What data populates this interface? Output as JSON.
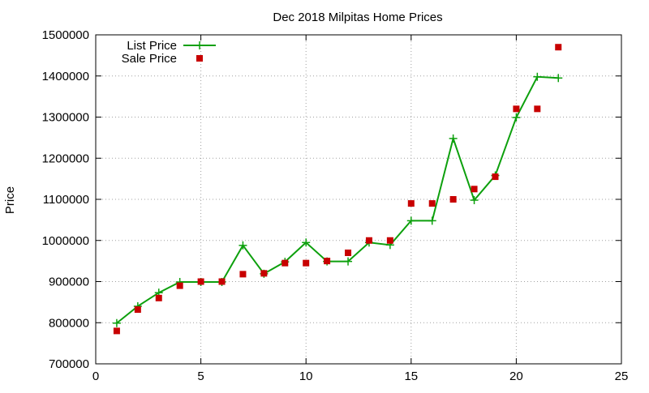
{
  "chart_data": {
    "type": "line",
    "title": "Dec 2018 Milpitas Home Prices",
    "xlabel": "",
    "ylabel": "Price",
    "xlim": [
      0,
      25
    ],
    "ylim": [
      700000,
      1500000
    ],
    "x_ticks": [
      0,
      5,
      10,
      15,
      20,
      25
    ],
    "y_ticks": [
      700000,
      800000,
      900000,
      1000000,
      1100000,
      1200000,
      1300000,
      1400000,
      1500000
    ],
    "grid": true,
    "legend_position": "top-left",
    "series": [
      {
        "name": "List Price",
        "style": "line-with-plus-markers",
        "color": "#0da00d",
        "x": [
          1,
          2,
          3,
          4,
          5,
          6,
          7,
          8,
          9,
          10,
          11,
          12,
          13,
          14,
          15,
          16,
          17,
          18,
          19,
          20,
          21,
          22
        ],
        "y": [
          799000,
          840000,
          873000,
          899000,
          899000,
          899000,
          988000,
          919000,
          948000,
          995000,
          949000,
          949000,
          995000,
          989000,
          1048000,
          1048000,
          1248000,
          1098000,
          1158000,
          1299000,
          1398000,
          1395000
        ]
      },
      {
        "name": "Sale Price",
        "style": "square-markers",
        "color": "#c80000",
        "x": [
          1,
          2,
          3,
          4,
          5,
          6,
          7,
          8,
          9,
          10,
          11,
          12,
          13,
          14,
          15,
          16,
          17,
          18,
          19,
          20,
          21,
          22
        ],
        "y": [
          780000,
          832000,
          860000,
          890000,
          900000,
          900000,
          918000,
          920000,
          945000,
          945000,
          950000,
          970000,
          1000000,
          1000000,
          1090000,
          1090000,
          1100000,
          1125000,
          1155000,
          1320000,
          1320000,
          1470000
        ]
      }
    ]
  }
}
